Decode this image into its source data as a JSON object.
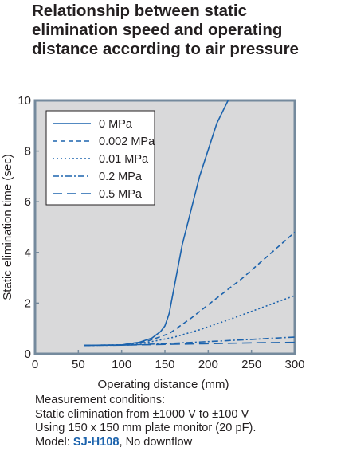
{
  "title_lines": [
    "Relationship between static",
    "elimination speed and operating",
    "distance according to air pressure"
  ],
  "chart_data": {
    "type": "line",
    "title": "Relationship between static elimination speed and operating distance according to air pressure",
    "xlabel": "Operating distance (mm)",
    "ylabel": "Static elimination time (sec)",
    "xlim": [
      0,
      300
    ],
    "ylim": [
      0,
      10
    ],
    "xticks": [
      "0",
      "50",
      "100",
      "150",
      "200",
      "250",
      "300"
    ],
    "yticks": [
      "0",
      "2",
      "4",
      "6",
      "8",
      "10"
    ],
    "grid": false,
    "legend_position": "top-left",
    "colors": {
      "line": "#1c63ad",
      "plot_bg": "#d9d9da",
      "frame": "#758a9d",
      "text": "#231f20"
    },
    "series": [
      {
        "name": "0 MPa",
        "dash": "solid",
        "x": [
          57,
          100,
          120,
          135,
          145,
          150,
          153,
          155,
          170,
          190,
          210,
          223
        ],
        "y": [
          0.33,
          0.35,
          0.45,
          0.62,
          0.88,
          1.1,
          1.4,
          1.6,
          4.3,
          7.0,
          9.1,
          10.0
        ]
      },
      {
        "name": "0.002 MPa",
        "dash": "dash",
        "x": [
          57,
          100,
          130,
          155,
          180,
          210,
          240,
          270,
          300
        ],
        "y": [
          0.33,
          0.35,
          0.5,
          0.8,
          1.4,
          2.2,
          3.0,
          3.9,
          4.8
        ]
      },
      {
        "name": "0.01 MPa",
        "dash": "dot",
        "x": [
          57,
          100,
          130,
          160,
          190,
          220,
          260,
          300
        ],
        "y": [
          0.33,
          0.35,
          0.45,
          0.65,
          0.95,
          1.3,
          1.8,
          2.3
        ]
      },
      {
        "name": "0.2 MPa",
        "dash": "dashdot",
        "x": [
          57,
          100,
          150,
          200,
          250,
          300
        ],
        "y": [
          0.33,
          0.34,
          0.4,
          0.48,
          0.57,
          0.66
        ]
      },
      {
        "name": "0.5 MPa",
        "dash": "longdash",
        "x": [
          57,
          100,
          150,
          200,
          250,
          300
        ],
        "y": [
          0.33,
          0.34,
          0.37,
          0.4,
          0.43,
          0.45
        ]
      }
    ]
  },
  "notes": {
    "heading": "Measurement conditions:",
    "line1": "Static elimination from ±1000 V to ±100 V",
    "line2": "Using 150 x 150 mm plate monitor (20 pF).",
    "model_prefix": "Model: ",
    "model_name": "SJ-H108",
    "model_suffix": ", No downflow"
  }
}
